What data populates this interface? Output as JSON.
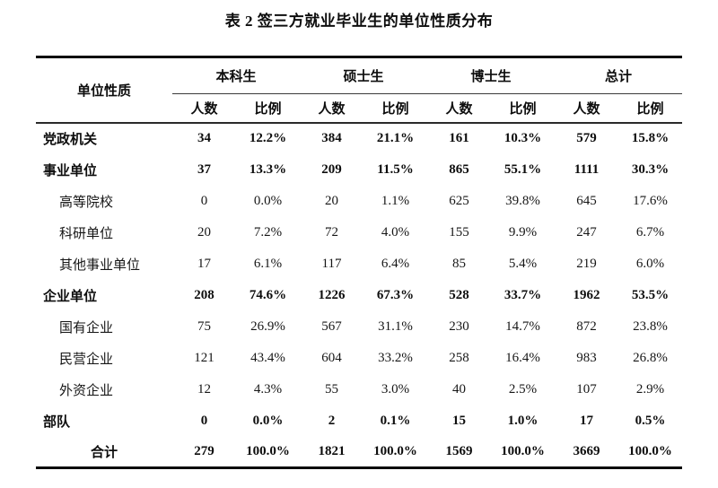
{
  "page": {
    "background": "#ffffff",
    "text_color": "#111111",
    "rule_color": "#0a0a0a"
  },
  "title": "表 2 签三方就业毕业生的单位性质分布",
  "table": {
    "row_header_label": "单位性质",
    "groups": [
      {
        "label": "本科生"
      },
      {
        "label": "硕士生"
      },
      {
        "label": "博士生"
      },
      {
        "label": "总计"
      }
    ],
    "sub_headers": [
      "人数",
      "比例"
    ],
    "rows": [
      {
        "label": "党政机关",
        "indent": 0,
        "bold": true,
        "values": [
          "34",
          "12.2%",
          "384",
          "21.1%",
          "161",
          "10.3%",
          "579",
          "15.8%"
        ]
      },
      {
        "label": "事业单位",
        "indent": 0,
        "bold": true,
        "values": [
          "37",
          "13.3%",
          "209",
          "11.5%",
          "865",
          "55.1%",
          "1111",
          "30.3%"
        ]
      },
      {
        "label": "高等院校",
        "indent": 1,
        "bold": false,
        "values": [
          "0",
          "0.0%",
          "20",
          "1.1%",
          "625",
          "39.8%",
          "645",
          "17.6%"
        ]
      },
      {
        "label": "科研单位",
        "indent": 1,
        "bold": false,
        "values": [
          "20",
          "7.2%",
          "72",
          "4.0%",
          "155",
          "9.9%",
          "247",
          "6.7%"
        ]
      },
      {
        "label": "其他事业单位",
        "indent": 1,
        "bold": false,
        "values": [
          "17",
          "6.1%",
          "117",
          "6.4%",
          "85",
          "5.4%",
          "219",
          "6.0%"
        ]
      },
      {
        "label": "企业单位",
        "indent": 0,
        "bold": true,
        "values": [
          "208",
          "74.6%",
          "1226",
          "67.3%",
          "528",
          "33.7%",
          "1962",
          "53.5%"
        ]
      },
      {
        "label": "国有企业",
        "indent": 1,
        "bold": false,
        "values": [
          "75",
          "26.9%",
          "567",
          "31.1%",
          "230",
          "14.7%",
          "872",
          "23.8%"
        ]
      },
      {
        "label": "民营企业",
        "indent": 1,
        "bold": false,
        "values": [
          "121",
          "43.4%",
          "604",
          "33.2%",
          "258",
          "16.4%",
          "983",
          "26.8%"
        ]
      },
      {
        "label": "外资企业",
        "indent": 1,
        "bold": false,
        "values": [
          "12",
          "4.3%",
          "55",
          "3.0%",
          "40",
          "2.5%",
          "107",
          "2.9%"
        ]
      },
      {
        "label": "部队",
        "indent": 0,
        "bold": true,
        "values": [
          "0",
          "0.0%",
          "2",
          "0.1%",
          "15",
          "1.0%",
          "17",
          "0.5%"
        ]
      },
      {
        "label": "合计",
        "indent": 2,
        "bold": true,
        "values": [
          "279",
          "100.0%",
          "1821",
          "100.0%",
          "1569",
          "100.0%",
          "3669",
          "100.0%"
        ]
      }
    ]
  }
}
